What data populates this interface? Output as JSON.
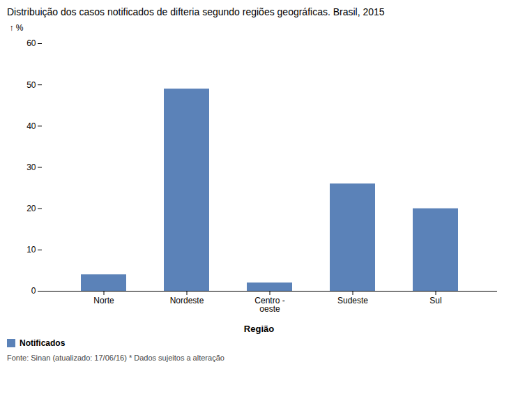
{
  "chart_data": {
    "type": "bar",
    "title": "Distribuição dos casos notificados de difteria segundo regiões geográficas. Brasil, 2015",
    "categories": [
      "Norte",
      "Nordeste",
      "Centro -\noeste",
      "Sudeste",
      "Sul"
    ],
    "series": [
      {
        "name": "Notificados",
        "color": "#5b82b8",
        "values": [
          4,
          49,
          2,
          26,
          20
        ]
      }
    ],
    "ylabel": "%",
    "xlabel": "Região",
    "ylim": [
      0,
      60
    ],
    "yticks": [
      0,
      10,
      20,
      30,
      40,
      50,
      60
    ],
    "legend": "bottom",
    "grid": false,
    "footnote": "Fonte: Sinan (atualizado: 17/06/16) * Dados sujeitos a alteração"
  }
}
